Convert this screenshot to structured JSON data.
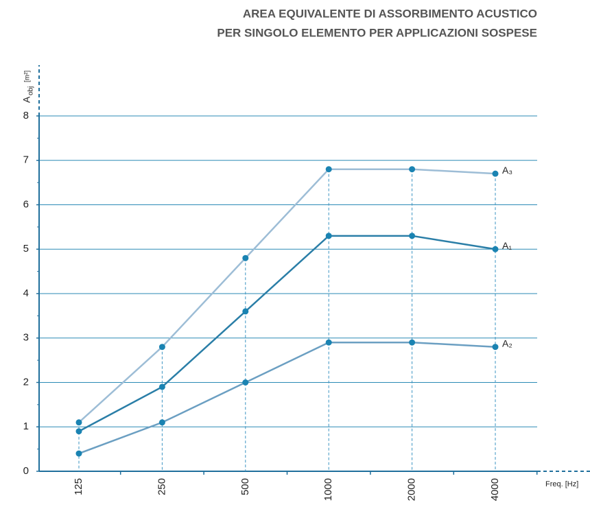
{
  "chart_data": {
    "type": "line",
    "title": [
      "AREA EQUIVALENTE DI ASSORBIMENTO ACUSTICO",
      "PER SINGOLO ELEMENTO PER APPLICAZIONI SOSPESE"
    ],
    "y_label": "A",
    "y_label_sub": "obj",
    "y_label_unit": "[m²]",
    "x_label": "Freq. [Hz]",
    "categories": [
      "125",
      "250",
      "500",
      "1000",
      "2000",
      "4000"
    ],
    "series": [
      {
        "name": "A₃",
        "color": "#9dbdd6",
        "values": [
          1.1,
          2.8,
          4.8,
          6.8,
          6.8,
          6.7
        ]
      },
      {
        "name": "A₁",
        "color": "#2a7ea7",
        "values": [
          0.9,
          1.9,
          3.6,
          5.3,
          5.3,
          5.0
        ]
      },
      {
        "name": "A₂",
        "color": "#6b9fc2",
        "values": [
          0.4,
          1.1,
          2.0,
          2.9,
          2.9,
          2.8
        ]
      }
    ],
    "marker_color": "#1a83b2",
    "ylim": [
      0,
      8
    ],
    "yticks": [
      0,
      1,
      2,
      3,
      4,
      5,
      6,
      7,
      8
    ],
    "grid": true
  }
}
